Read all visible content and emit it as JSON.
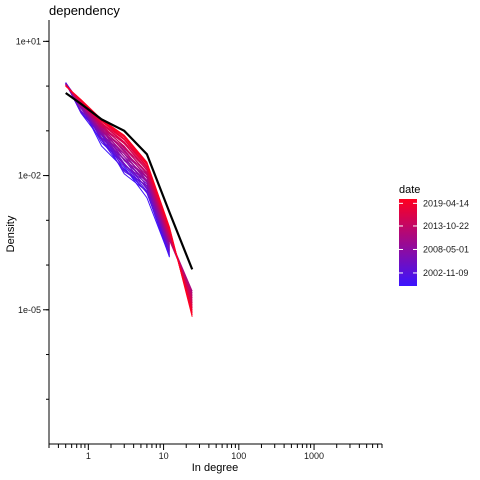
{
  "chart_data": {
    "type": "line",
    "title": "dependency",
    "xlabel": "In degree",
    "ylabel": "Density",
    "x_scale": "log",
    "y_scale": "log",
    "xlim": [
      0.3,
      8000
    ],
    "ylim": [
      1e-08,
      30
    ],
    "x_ticks": [
      1,
      10,
      100,
      1000
    ],
    "x_tick_labels": [
      "1",
      "10",
      "100",
      "1000"
    ],
    "y_ticks": [
      1e-05,
      0.01,
      10
    ],
    "y_tick_labels": [
      "1e-05",
      "1e-02",
      "1e+01"
    ],
    "grid": false,
    "legend": {
      "title": "date",
      "position": "right",
      "type": "color gradient",
      "labels": [
        "2019-04-14",
        "2013-10-22",
        "2008-05-01",
        "2002-11-09"
      ],
      "color_low": "#3a14ff",
      "color_high": "#ff0020"
    },
    "x": [
      0.5,
      0.8,
      1.5,
      3,
      6,
      12,
      24
    ],
    "highlight_series": {
      "color": "#000000",
      "values": [
        0.7,
        0.4,
        0.18,
        0.1,
        0.03,
        0.0015,
        8e-05
      ]
    },
    "series_start": {
      "date": "2002-11-09",
      "values": [
        1.2,
        0.3,
        0.06,
        0.012,
        0.004,
        0.00015
      ]
    },
    "series_end": {
      "date": "2019-04-14",
      "values": [
        1.0,
        0.5,
        0.18,
        0.08,
        0.02,
        0.0007,
        7e-06
      ]
    },
    "series_count": 36
  },
  "colors": {
    "axis": "#000000",
    "background": "#ffffff"
  }
}
